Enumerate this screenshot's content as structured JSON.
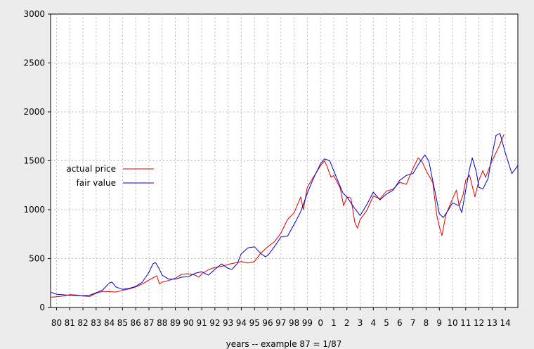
{
  "chart_data": {
    "type": "line",
    "title": "",
    "xlabel": "years -- example 87 = 1/87",
    "ylabel": "",
    "ylim": [
      0,
      3000
    ],
    "xlim": [
      1979.55,
      2014.95
    ],
    "yticks": [
      0,
      500,
      1000,
      1500,
      2000,
      2500,
      3000
    ],
    "xticks": [
      {
        "value": 1980,
        "label": "80"
      },
      {
        "value": 1981,
        "label": "81"
      },
      {
        "value": 1982,
        "label": "82"
      },
      {
        "value": 1983,
        "label": "83"
      },
      {
        "value": 1984,
        "label": "84"
      },
      {
        "value": 1985,
        "label": "85"
      },
      {
        "value": 1986,
        "label": "86"
      },
      {
        "value": 1987,
        "label": "87"
      },
      {
        "value": 1988,
        "label": "88"
      },
      {
        "value": 1989,
        "label": "89"
      },
      {
        "value": 1990,
        "label": "90"
      },
      {
        "value": 1991,
        "label": "91"
      },
      {
        "value": 1992,
        "label": "92"
      },
      {
        "value": 1993,
        "label": "93"
      },
      {
        "value": 1994,
        "label": "94"
      },
      {
        "value": 1995,
        "label": "95"
      },
      {
        "value": 1996,
        "label": "96"
      },
      {
        "value": 1997,
        "label": "97"
      },
      {
        "value": 1998,
        "label": "98"
      },
      {
        "value": 1999,
        "label": "99"
      },
      {
        "value": 2000,
        "label": "0"
      },
      {
        "value": 2001,
        "label": "1"
      },
      {
        "value": 2002,
        "label": "2"
      },
      {
        "value": 2003,
        "label": "3"
      },
      {
        "value": 2004,
        "label": "4"
      },
      {
        "value": 2005,
        "label": "5"
      },
      {
        "value": 2006,
        "label": "6"
      },
      {
        "value": 2007,
        "label": "7"
      },
      {
        "value": 2008,
        "label": "8"
      },
      {
        "value": 2009,
        "label": "9"
      },
      {
        "value": 2010,
        "label": "10"
      },
      {
        "value": 2011,
        "label": "11"
      },
      {
        "value": 2012,
        "label": "12"
      },
      {
        "value": 2013,
        "label": "13"
      },
      {
        "value": 2014,
        "label": "14"
      }
    ],
    "grid": true,
    "legend_position": "left-middle",
    "series": [
      {
        "name": "actual price",
        "color": "#dd0000",
        "points": [
          [
            1979.6,
            105
          ],
          [
            1980.0,
            110
          ],
          [
            1980.5,
            118
          ],
          [
            1981.0,
            132
          ],
          [
            1981.5,
            128
          ],
          [
            1982.0,
            118
          ],
          [
            1982.5,
            112
          ],
          [
            1983.0,
            145
          ],
          [
            1983.5,
            165
          ],
          [
            1984.0,
            162
          ],
          [
            1984.5,
            158
          ],
          [
            1985.0,
            175
          ],
          [
            1985.5,
            190
          ],
          [
            1986.0,
            210
          ],
          [
            1986.5,
            240
          ],
          [
            1987.0,
            280
          ],
          [
            1987.6,
            325
          ],
          [
            1987.8,
            240
          ],
          [
            1988.0,
            260
          ],
          [
            1988.5,
            275
          ],
          [
            1989.0,
            300
          ],
          [
            1989.5,
            340
          ],
          [
            1990.0,
            345
          ],
          [
            1990.5,
            330
          ],
          [
            1990.8,
            310
          ],
          [
            1991.0,
            345
          ],
          [
            1991.5,
            385
          ],
          [
            1992.0,
            410
          ],
          [
            1992.5,
            420
          ],
          [
            1993.0,
            440
          ],
          [
            1993.5,
            455
          ],
          [
            1994.0,
            470
          ],
          [
            1994.5,
            455
          ],
          [
            1995.0,
            470
          ],
          [
            1995.5,
            560
          ],
          [
            1996.0,
            620
          ],
          [
            1996.5,
            670
          ],
          [
            1997.0,
            760
          ],
          [
            1997.5,
            900
          ],
          [
            1998.0,
            970
          ],
          [
            1998.5,
            1130
          ],
          [
            1998.7,
            1000
          ],
          [
            1999.0,
            1230
          ],
          [
            1999.5,
            1340
          ],
          [
            2000.0,
            1450
          ],
          [
            2000.3,
            1500
          ],
          [
            2000.5,
            1440
          ],
          [
            2000.8,
            1330
          ],
          [
            2001.0,
            1350
          ],
          [
            2001.5,
            1220
          ],
          [
            2001.75,
            1040
          ],
          [
            2002.0,
            1130
          ],
          [
            2002.3,
            1120
          ],
          [
            2002.6,
            870
          ],
          [
            2002.8,
            810
          ],
          [
            2003.0,
            900
          ],
          [
            2003.5,
            990
          ],
          [
            2004.0,
            1140
          ],
          [
            2004.5,
            1110
          ],
          [
            2005.0,
            1190
          ],
          [
            2005.5,
            1210
          ],
          [
            2006.0,
            1280
          ],
          [
            2006.5,
            1260
          ],
          [
            2007.0,
            1420
          ],
          [
            2007.4,
            1530
          ],
          [
            2007.7,
            1490
          ],
          [
            2008.0,
            1400
          ],
          [
            2008.5,
            1280
          ],
          [
            2008.8,
            950
          ],
          [
            2009.0,
            830
          ],
          [
            2009.2,
            735
          ],
          [
            2009.5,
            950
          ],
          [
            2010.0,
            1110
          ],
          [
            2010.3,
            1200
          ],
          [
            2010.5,
            1040
          ],
          [
            2010.8,
            1150
          ],
          [
            2011.0,
            1300
          ],
          [
            2011.3,
            1350
          ],
          [
            2011.7,
            1130
          ],
          [
            2012.0,
            1300
          ],
          [
            2012.3,
            1400
          ],
          [
            2012.5,
            1330
          ],
          [
            2013.0,
            1500
          ],
          [
            2013.5,
            1640
          ],
          [
            2013.9,
            1770
          ]
        ]
      },
      {
        "name": "fair value",
        "color": "#0000cc",
        "points": [
          [
            1979.6,
            155
          ],
          [
            1980.0,
            135
          ],
          [
            1980.5,
            130
          ],
          [
            1981.0,
            125
          ],
          [
            1981.5,
            122
          ],
          [
            1982.0,
            120
          ],
          [
            1982.5,
            125
          ],
          [
            1983.0,
            150
          ],
          [
            1983.5,
            180
          ],
          [
            1984.0,
            250
          ],
          [
            1984.2,
            260
          ],
          [
            1984.5,
            210
          ],
          [
            1985.0,
            185
          ],
          [
            1985.5,
            195
          ],
          [
            1986.0,
            215
          ],
          [
            1986.5,
            260
          ],
          [
            1987.0,
            360
          ],
          [
            1987.3,
            445
          ],
          [
            1987.5,
            460
          ],
          [
            1987.8,
            390
          ],
          [
            1988.0,
            330
          ],
          [
            1988.5,
            290
          ],
          [
            1989.0,
            290
          ],
          [
            1989.5,
            310
          ],
          [
            1990.0,
            315
          ],
          [
            1990.5,
            350
          ],
          [
            1991.0,
            365
          ],
          [
            1991.5,
            330
          ],
          [
            1992.0,
            390
          ],
          [
            1992.5,
            445
          ],
          [
            1993.0,
            400
          ],
          [
            1993.3,
            390
          ],
          [
            1993.7,
            450
          ],
          [
            1994.0,
            550
          ],
          [
            1994.5,
            610
          ],
          [
            1995.0,
            620
          ],
          [
            1995.5,
            550
          ],
          [
            1995.8,
            520
          ],
          [
            1996.0,
            530
          ],
          [
            1996.5,
            620
          ],
          [
            1997.0,
            720
          ],
          [
            1997.5,
            730
          ],
          [
            1998.0,
            850
          ],
          [
            1998.5,
            980
          ],
          [
            1999.0,
            1170
          ],
          [
            1999.5,
            1330
          ],
          [
            2000.0,
            1470
          ],
          [
            2000.3,
            1520
          ],
          [
            2000.7,
            1500
          ],
          [
            2001.0,
            1400
          ],
          [
            2001.3,
            1300
          ],
          [
            2001.7,
            1170
          ],
          [
            2002.0,
            1130
          ],
          [
            2002.5,
            1030
          ],
          [
            2003.0,
            940
          ],
          [
            2003.5,
            1050
          ],
          [
            2004.0,
            1180
          ],
          [
            2004.5,
            1100
          ],
          [
            2005.0,
            1160
          ],
          [
            2005.5,
            1200
          ],
          [
            2006.0,
            1300
          ],
          [
            2006.5,
            1350
          ],
          [
            2007.0,
            1370
          ],
          [
            2007.5,
            1480
          ],
          [
            2007.9,
            1560
          ],
          [
            2008.2,
            1500
          ],
          [
            2008.5,
            1300
          ],
          [
            2008.8,
            1100
          ],
          [
            2009.0,
            960
          ],
          [
            2009.3,
            920
          ],
          [
            2009.7,
            1000
          ],
          [
            2010.0,
            1070
          ],
          [
            2010.5,
            1040
          ],
          [
            2010.7,
            970
          ],
          [
            2011.0,
            1200
          ],
          [
            2011.3,
            1420
          ],
          [
            2011.5,
            1530
          ],
          [
            2011.8,
            1390
          ],
          [
            2012.0,
            1230
          ],
          [
            2012.3,
            1210
          ],
          [
            2012.7,
            1320
          ],
          [
            2013.0,
            1560
          ],
          [
            2013.3,
            1760
          ],
          [
            2013.6,
            1780
          ],
          [
            2014.0,
            1580
          ],
          [
            2014.5,
            1370
          ],
          [
            2014.95,
            1450
          ]
        ]
      }
    ]
  }
}
